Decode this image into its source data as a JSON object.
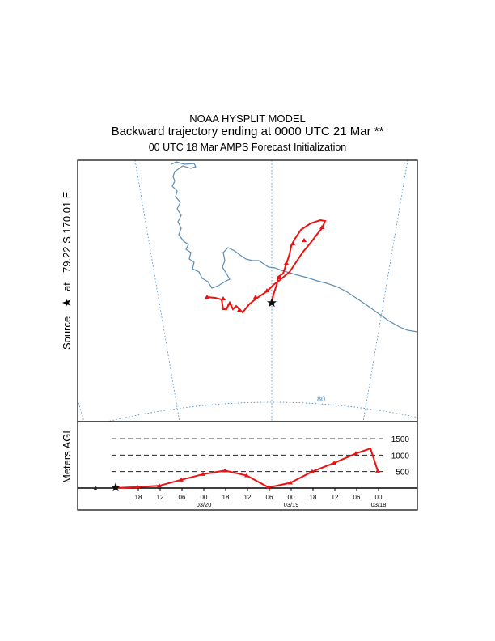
{
  "header": {
    "model": "NOAA HYSPLIT MODEL",
    "description": "Backward trajectory ending at 0000 UTC 21 Mar **",
    "init_line": "00 UTC 18 Mar    AMPS  Forecast Initialization"
  },
  "map": {
    "source_label": "Source",
    "source_at": "at",
    "source_coords": "79.22 S  170.01 E",
    "latitude_label": "80",
    "line_color": "#ee1111",
    "coast_color": "#5b8db6",
    "grid_color": "#3f84c4"
  },
  "chart_data": {
    "type": "line",
    "ylabel": "Meters AGL",
    "ylim": [
      0,
      1500
    ],
    "yticks": [
      500,
      1000,
      1500
    ],
    "source_height_label": "4",
    "xticks": [
      "18",
      "12",
      "06",
      "00",
      "18",
      "12",
      "06",
      "00",
      "18",
      "12",
      "06",
      "00"
    ],
    "date_labels": [
      "03/20",
      "03/19",
      "03/18"
    ],
    "series": [
      {
        "x_hours_back": [
          0,
          6,
          12,
          18,
          24,
          30,
          36,
          42,
          48,
          54,
          60,
          66,
          72
        ],
        "heights": [
          4,
          30,
          70,
          250,
          420,
          530,
          380,
          20,
          160,
          500,
          760,
          1050,
          520
        ]
      }
    ]
  }
}
